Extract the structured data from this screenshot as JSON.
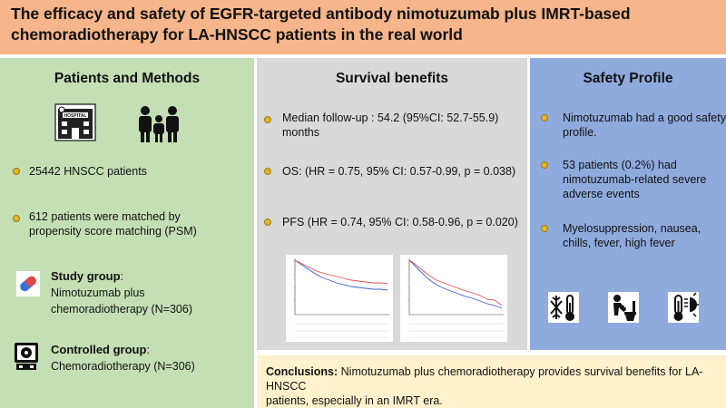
{
  "header": {
    "title_line1": "The efficacy and safety of EGFR-targeted antibody nimotuzumab plus IMRT-based",
    "title_line2": "chemoradiotherapy for LA-HNSCC patients in the real world"
  },
  "patients_methods": {
    "title": "Patients and Methods",
    "hospital_label": "HOSPITAL",
    "bullets": [
      "25442 HNSCC patients",
      "612 patients were matched by",
      "propensity score matching (PSM)"
    ],
    "study_group_label": "Study group",
    "study_group_desc_line1": "Nimotuzumab plus",
    "study_group_desc_line2": "chemoradiotherapy (N=306)",
    "control_group_label": "Controlled group",
    "control_group_desc": "Chemoradiotherapy (N=306)"
  },
  "survival": {
    "title": "Survival benefits",
    "followup_line1": "Median follow-up : 54.2 (95%CI: 52.7-55.9)",
    "followup_line2": "months",
    "os": "OS: (HR = 0.75, 95% CI: 0.57-0.99, p = 0.038)",
    "pfs": "PFS (HR = 0.74, 95% CI: 0.58-0.96, p = 0.020)"
  },
  "safety": {
    "title": "Safety Profile",
    "item1_line1": "Nimotuzumab had a good safety",
    "item1_line2": "profile.",
    "item2_line1": "53 patients (0.2%) had",
    "item2_line2": "nimotuzumab-related severe",
    "item2_line3": "adverse events",
    "item3_line1": "Myelosuppression, nausea,",
    "item3_line2": "chills, fever, high fever"
  },
  "conclusion": {
    "label": "Conclusions:",
    "text_line1": " Nimotuzumab plus chemoradiotherapy provides survival benefits for LA-HNSCC",
    "text_line2": "patients, especially in an IMRT era."
  },
  "colors": {
    "header": "#f6b58a",
    "patients_bg": "#c5dfb4",
    "survival_bg": "#d9d9d9",
    "safety_bg": "#8faadc",
    "conclusion_bg": "#fff2cc",
    "bullet": "#e2b42c",
    "control_curve": "#3a5fcd",
    "study_curve": "#e0505a"
  }
}
